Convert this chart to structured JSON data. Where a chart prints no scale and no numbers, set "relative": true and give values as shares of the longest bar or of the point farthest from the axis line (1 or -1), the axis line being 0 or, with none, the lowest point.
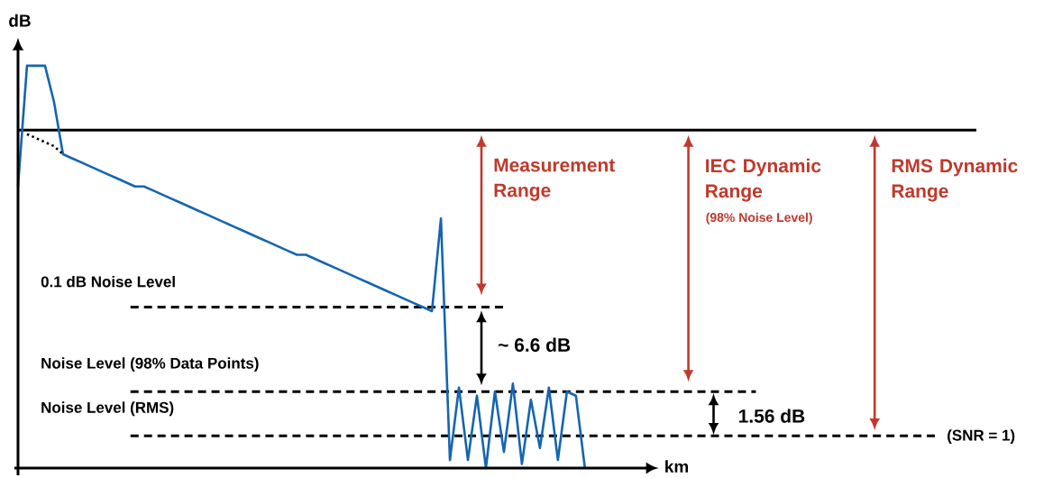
{
  "chart_data": {
    "type": "line",
    "relative": true,
    "xlabel": "km",
    "ylabel": "dB",
    "categories": [
      null,
      null,
      null,
      null,
      null,
      null,
      null,
      null,
      null,
      null,
      null,
      null,
      null,
      null,
      null,
      null,
      null,
      null,
      null,
      null,
      null,
      null,
      null,
      null,
      null,
      null,
      null,
      null,
      null,
      null,
      null,
      null,
      null,
      null,
      null,
      null,
      null,
      null,
      null,
      null,
      null,
      null,
      null,
      null,
      null,
      null,
      null,
      null,
      null,
      null,
      null,
      null,
      null,
      null,
      null,
      null,
      null,
      null,
      null,
      null,
      null,
      null,
      null,
      null,
      null,
      null,
      null,
      null,
      null,
      null,
      null
    ],
    "series": [
      {
        "color": "#1565b0",
        "line_style": "solid",
        "values": [
          0.7,
          1.0,
          1.0,
          1.0,
          0.91,
          0.78,
          0.77,
          0.76,
          0.75,
          0.74,
          0.73,
          0.72,
          0.71,
          0.7,
          0.7,
          0.69,
          0.68,
          0.67,
          0.66,
          0.65,
          0.64,
          0.63,
          0.62,
          0.61,
          0.6,
          0.59,
          0.58,
          0.57,
          0.56,
          0.55,
          0.54,
          0.53,
          0.53,
          0.52,
          0.51,
          0.5,
          0.49,
          0.48,
          0.47,
          0.46,
          0.45,
          0.44,
          0.43,
          0.42,
          0.41,
          0.4,
          0.39,
          0.62,
          0.02,
          0.2,
          0.02,
          0.18,
          0.0,
          0.19,
          0.04,
          0.21,
          0.01,
          0.17,
          0.05,
          0.2,
          0.02,
          0.19,
          0.18,
          0.0,
          null,
          null,
          null,
          null,
          null,
          null,
          null
        ]
      },
      {
        "color": "#000000",
        "line_style": "dotted",
        "values": [
          null,
          0.83,
          0.82,
          0.81,
          0.8,
          0.78,
          null,
          null,
          null,
          null,
          null,
          null,
          null,
          null,
          null,
          null,
          null,
          null,
          null,
          null,
          null,
          null,
          null,
          null,
          null,
          null,
          null,
          null,
          null,
          null,
          null,
          null,
          null,
          null,
          null,
          null,
          null,
          null,
          null,
          null,
          null,
          null,
          null,
          null,
          null,
          null,
          null,
          null,
          null,
          null,
          null,
          null,
          null,
          null,
          null,
          null,
          null,
          null,
          null,
          null,
          null,
          null,
          null,
          null,
          null,
          null,
          null,
          null,
          null,
          null,
          null
        ]
      }
    ],
    "ref_lines": [
      {
        "axis": "y",
        "value": 0.84,
        "color": "#000000",
        "line_style": "solid"
      },
      {
        "axis": "y",
        "value": 0.4,
        "label": "0.1 dB Noise Level",
        "color": "#000000",
        "line_style": "dashed"
      },
      {
        "axis": "y",
        "value": 0.19,
        "label": "Noise Level (98% Data Points)",
        "color": "#000000",
        "line_style": "dashed"
      },
      {
        "axis": "y",
        "value": 0.08,
        "label": "Noise Level (RMS)",
        "color": "#000000",
        "line_style": "dashed"
      }
    ],
    "annotations": [
      "Measurement Range",
      "IEC Dynamic Range",
      "(98% Noise Level)",
      "RMS Dynamic Range",
      "~ 6.6 dB",
      "1.56 dB",
      "(SNR = 1)"
    ]
  }
}
